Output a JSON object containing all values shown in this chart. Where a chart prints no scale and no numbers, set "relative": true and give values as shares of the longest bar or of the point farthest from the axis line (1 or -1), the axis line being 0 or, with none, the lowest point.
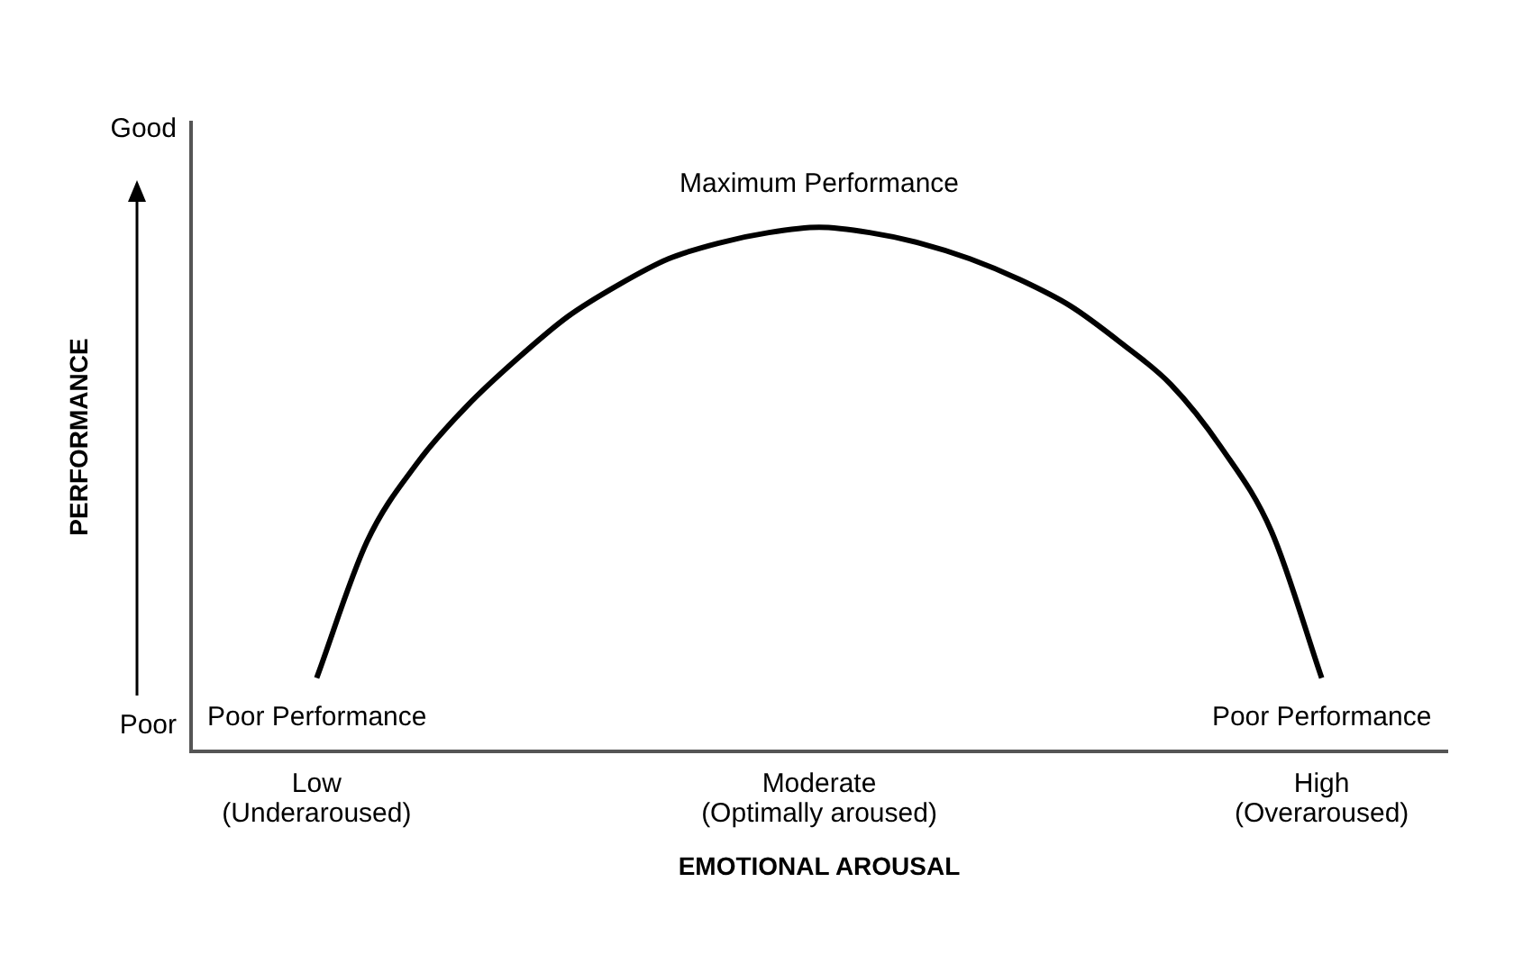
{
  "chart_data": {
    "type": "line",
    "relative": true,
    "xlabel": "EMOTIONAL AROUSAL",
    "ylabel": "PERFORMANCE",
    "categories": [
      null,
      null,
      "Low\n(Underaroused)",
      null,
      null,
      null,
      null,
      null,
      null,
      null,
      null,
      null,
      "Moderate\n(Optimally aroused)",
      null,
      null,
      null,
      null,
      null,
      null,
      null,
      null,
      null,
      "High\n(Overaroused)",
      null,
      null
    ],
    "series": [
      {
        "color": "#000000",
        "values": [
          null,
          null,
          0.14,
          0.4,
          0.55,
          0.66,
          0.75,
          0.83,
          0.89,
          0.94,
          0.97,
          0.99,
          1,
          0.99,
          0.97,
          0.94,
          0.9,
          0.85,
          0.78,
          0.7,
          0.58,
          0.42,
          0.14,
          null,
          null
        ]
      }
    ],
    "annotations": [
      {
        "text": "Maximum Performance",
        "x": "Moderate\n(Optimally aroused)",
        "y": 1
      },
      {
        "text": "Poor Performance",
        "x": "Low\n(Underaroused)",
        "y": 0.14
      },
      {
        "text": "Poor Performance",
        "x": "High\n(Overaroused)",
        "y": 0.14
      },
      "Good",
      "Poor"
    ],
    "grid": false,
    "legend": false,
    "marker": "none",
    "line_style": "solid"
  }
}
